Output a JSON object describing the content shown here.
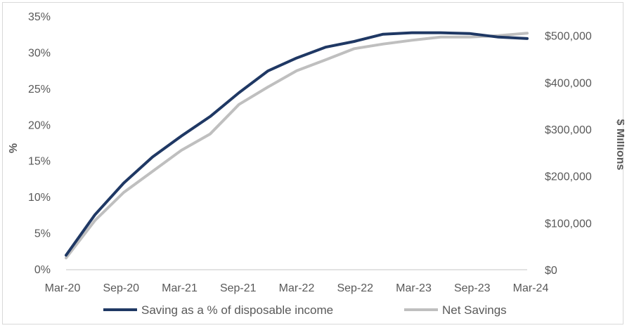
{
  "chart_data": {
    "type": "line",
    "title": "",
    "xlabel": "",
    "ylabel_left": "%",
    "ylabel_right": "$ Millions",
    "x_ticks": [
      "Mar-20",
      "Sep-20",
      "Mar-21",
      "Sep-21",
      "Mar-22",
      "Sep-22",
      "Mar-23",
      "Sep-23",
      "Mar-24"
    ],
    "y_left_ticks": [
      "0%",
      "5%",
      "10%",
      "15%",
      "20%",
      "25%",
      "30%",
      "35%"
    ],
    "y_right_ticks": [
      "$0",
      "$100,000",
      "$200,000",
      "$300,000",
      "$400,000",
      "$500,000"
    ],
    "ylim_left": [
      0,
      35
    ],
    "ylim_right": [
      0,
      540000
    ],
    "grid": false,
    "legend_position": "bottom",
    "x": [
      "Mar-20",
      "Jun-20",
      "Sep-20",
      "Dec-20",
      "Mar-21",
      "Jun-21",
      "Sep-21",
      "Dec-21",
      "Mar-22",
      "Jun-22",
      "Sep-22",
      "Dec-22",
      "Mar-23",
      "Jun-23",
      "Sep-23",
      "Dec-23",
      "Mar-24"
    ],
    "series": [
      {
        "name": "Saving as a % of disposable income",
        "axis": "left",
        "color": "#1f3864",
        "values": [
          2.0,
          7.6,
          12.0,
          15.6,
          18.5,
          21.2,
          24.5,
          27.5,
          29.3,
          30.8,
          31.6,
          32.6,
          32.8,
          32.8,
          32.7,
          32.2,
          32.0
        ]
      },
      {
        "name": "Net Savings",
        "axis": "right",
        "color": "#bfbfbf",
        "values": [
          25000,
          105000,
          165000,
          210000,
          255000,
          290000,
          353000,
          390000,
          425000,
          448000,
          472000,
          482000,
          490000,
          497000,
          497000,
          500000,
          505000
        ]
      }
    ]
  }
}
